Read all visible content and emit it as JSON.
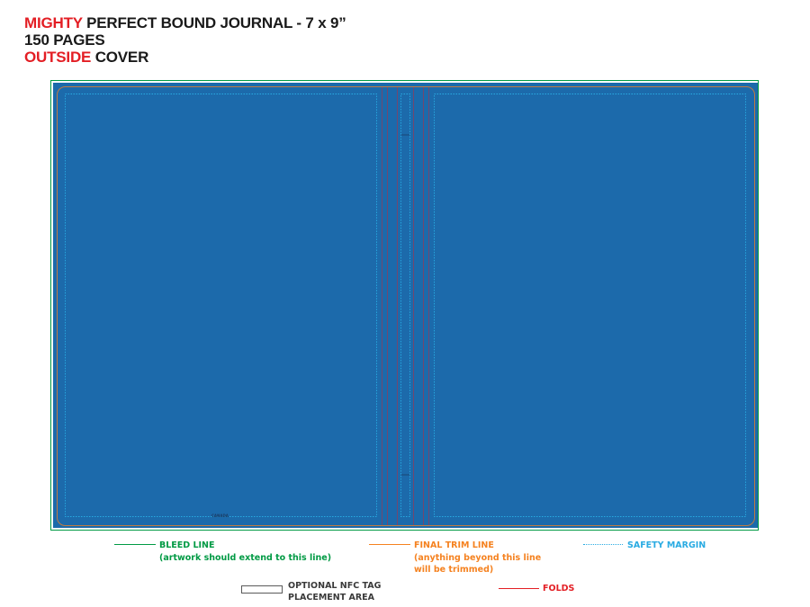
{
  "colors": {
    "accent": "#e31e24",
    "cover": "#1c6aab",
    "bleed": "#009a44",
    "trim": "#f58220",
    "safety": "#29abe2",
    "fold": "#e31e24",
    "title": "#1a1a1a"
  },
  "header": {
    "line1": {
      "accent": "MIGHTY",
      "rest": " PERFECT BOUND JOURNAL - 7 x 9”"
    },
    "line2": {
      "text": "150 PAGES"
    },
    "line3": {
      "accent": "OUTSIDE",
      "rest": " COVER"
    }
  },
  "cover": {
    "small_label": "CANADA"
  },
  "legend": {
    "bleed": {
      "label": "BLEED LINE",
      "note": "(artwork should extend to this line)"
    },
    "trim": {
      "label": "FINAL TRIM LINE",
      "note_line1": "(anything beyond this line",
      "note_line2": "will be trimmed)"
    },
    "safety": {
      "label": "SAFETY MARGIN"
    },
    "nfc": {
      "label_line1": "OPTIONAL NFC TAG",
      "label_line2": "PLACEMENT AREA"
    },
    "folds": {
      "label": "FOLDS"
    }
  }
}
